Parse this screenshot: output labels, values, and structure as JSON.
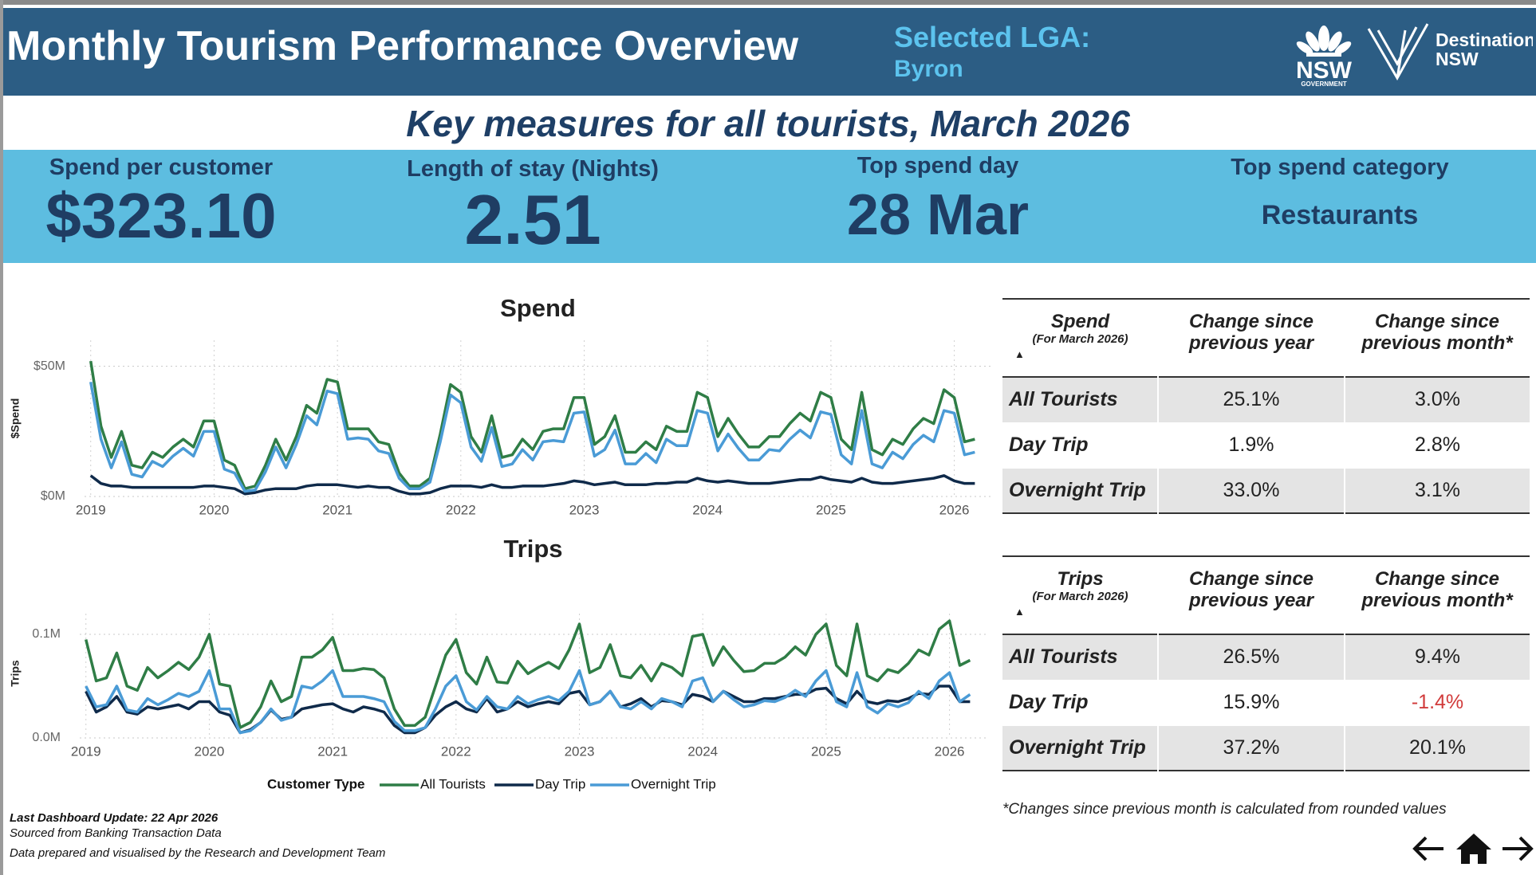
{
  "header": {
    "title": "Monthly Tourism Performance Overview",
    "lga_label": "Selected LGA:",
    "lga": "Byron",
    "logo_nsw": [
      "NSW",
      "GOVERNMENT"
    ],
    "logo_destination": [
      "Destination",
      "NSW"
    ]
  },
  "banner": "Key measures for all tourists, March 2026",
  "kpis": [
    {
      "label": "Spend per customer",
      "value": "$323.10"
    },
    {
      "label": "Length of stay (Nights)",
      "value": "2.51"
    },
    {
      "label": "Top spend day",
      "value": "28 Mar"
    },
    {
      "label": "Top spend category",
      "value": "Restaurants"
    }
  ],
  "chart_data": [
    {
      "type": "line",
      "title": "Spend",
      "y_label": "$Spend",
      "grid": true,
      "x": [
        2019,
        2019.0833,
        2019.1667,
        2019.25,
        2019.3333,
        2019.4167,
        2019.5,
        2019.5833,
        2019.6667,
        2019.75,
        2019.8333,
        2019.9167,
        2020,
        2020.0833,
        2020.1667,
        2020.25,
        2020.3333,
        2020.4167,
        2020.5,
        2020.5833,
        2020.6667,
        2020.75,
        2020.8333,
        2020.9167,
        2021,
        2021.0833,
        2021.1667,
        2021.25,
        2021.3333,
        2021.4167,
        2021.5,
        2021.5833,
        2021.6667,
        2021.75,
        2021.8333,
        2021.9167,
        2022,
        2022.0833,
        2022.1667,
        2022.25,
        2022.3333,
        2022.4167,
        2022.5,
        2022.5833,
        2022.6667,
        2022.75,
        2022.8333,
        2022.9167,
        2023,
        2023.0833,
        2023.1667,
        2023.25,
        2023.3333,
        2023.4167,
        2023.5,
        2023.5833,
        2023.6667,
        2023.75,
        2023.8333,
        2023.9167,
        2024,
        2024.0833,
        2024.1667,
        2024.25,
        2024.3333,
        2024.4167,
        2024.5,
        2024.5833,
        2024.6667,
        2024.75,
        2024.8333,
        2024.9167,
        2025,
        2025.0833,
        2025.1667,
        2025.25,
        2025.3333,
        2025.4167,
        2025.5,
        2025.5833,
        2025.6667,
        2025.75,
        2025.8333,
        2025.9167,
        2026,
        2026.0833,
        2026.1667
      ],
      "xlim": [
        2018.95,
        2026.3
      ],
      "xticks": [
        2019,
        2020,
        2021,
        2022,
        2023,
        2024,
        2025,
        2026
      ],
      "ylim": [
        0,
        60
      ],
      "yticks": [
        {
          "value": 0,
          "label": "$0M"
        },
        {
          "value": 50,
          "label": "$50M"
        }
      ],
      "series": [
        {
          "name": "All Tourists",
          "color": "#2f7d46",
          "values": [
            52,
            27,
            15,
            25,
            12,
            11,
            17,
            15,
            19,
            22,
            19,
            29,
            29,
            14,
            12,
            3,
            4,
            12,
            22,
            14,
            23,
            35,
            32,
            45,
            44,
            26,
            26,
            26,
            21,
            20,
            9,
            4,
            4,
            7,
            24,
            43,
            40,
            23,
            17,
            31,
            15,
            16,
            22,
            18,
            25,
            26,
            26,
            38,
            38,
            20,
            23,
            31,
            17,
            17,
            21,
            18,
            27,
            25,
            25,
            40,
            38,
            23,
            30,
            24,
            19,
            19,
            23,
            23,
            28,
            32,
            29,
            40,
            38,
            22,
            18,
            40,
            18,
            16,
            22,
            20,
            26,
            30,
            28,
            41,
            38,
            21,
            22
          ]
        },
        {
          "name": "Day Trip",
          "color": "#0f2a4a",
          "values": [
            8,
            5,
            4,
            4,
            3.5,
            3.5,
            3.5,
            3.5,
            3.5,
            3.5,
            3.5,
            4,
            4,
            3.5,
            3,
            1,
            1.5,
            2.5,
            3,
            3,
            3,
            4,
            4.5,
            4.5,
            4.5,
            4,
            3.5,
            4,
            3.5,
            3.5,
            2,
            1,
            1,
            1.5,
            3,
            4,
            4,
            4,
            3.5,
            4.5,
            3.5,
            3.5,
            4,
            4,
            4,
            4.5,
            5,
            6,
            5.5,
            4.5,
            5,
            5.5,
            4.5,
            4.5,
            4.5,
            5,
            5,
            5.5,
            5.5,
            7,
            6,
            5.5,
            6,
            5.5,
            5,
            5,
            5,
            5.5,
            6,
            6.5,
            6.5,
            7.5,
            6.5,
            6,
            5.5,
            7,
            5.5,
            5,
            5,
            5.5,
            6,
            6.5,
            7,
            8,
            6,
            5,
            5
          ]
        },
        {
          "name": "Overnight Trip",
          "color": "#4a9bd6",
          "values": [
            44,
            22,
            11,
            21,
            8.5,
            7.5,
            13.5,
            11.5,
            15.5,
            18.5,
            15.5,
            25,
            25,
            10.5,
            9,
            2,
            2.5,
            9.5,
            19,
            11,
            20,
            31,
            27.5,
            40.5,
            39.5,
            22,
            22.5,
            22,
            17.5,
            16.5,
            7,
            3,
            3,
            5.5,
            21,
            39,
            36,
            19,
            13.5,
            26.5,
            11.5,
            12.5,
            18,
            14,
            21,
            21.5,
            21,
            32,
            32.5,
            15.5,
            18,
            25.5,
            12.5,
            12.5,
            16.5,
            13,
            22,
            19.5,
            19.5,
            33,
            32,
            17.5,
            24,
            18.5,
            14,
            14,
            18,
            17.5,
            22,
            25.5,
            22.5,
            32.5,
            31.5,
            16,
            12.5,
            33,
            12.5,
            11,
            17,
            14.5,
            20,
            23.5,
            21,
            33,
            32,
            16,
            17
          ]
        }
      ]
    },
    {
      "type": "line",
      "title": "Trips",
      "y_label": "Trips",
      "grid": true,
      "legend_title": "Customer Type",
      "legend": "bottom",
      "x": [
        2019,
        2019.0833,
        2019.1667,
        2019.25,
        2019.3333,
        2019.4167,
        2019.5,
        2019.5833,
        2019.6667,
        2019.75,
        2019.8333,
        2019.9167,
        2020,
        2020.0833,
        2020.1667,
        2020.25,
        2020.3333,
        2020.4167,
        2020.5,
        2020.5833,
        2020.6667,
        2020.75,
        2020.8333,
        2020.9167,
        2021,
        2021.0833,
        2021.1667,
        2021.25,
        2021.3333,
        2021.4167,
        2021.5,
        2021.5833,
        2021.6667,
        2021.75,
        2021.8333,
        2021.9167,
        2022,
        2022.0833,
        2022.1667,
        2022.25,
        2022.3333,
        2022.4167,
        2022.5,
        2022.5833,
        2022.6667,
        2022.75,
        2022.8333,
        2022.9167,
        2023,
        2023.0833,
        2023.1667,
        2023.25,
        2023.3333,
        2023.4167,
        2023.5,
        2023.5833,
        2023.6667,
        2023.75,
        2023.8333,
        2023.9167,
        2024,
        2024.0833,
        2024.1667,
        2024.25,
        2024.3333,
        2024.4167,
        2024.5,
        2024.5833,
        2024.6667,
        2024.75,
        2024.8333,
        2024.9167,
        2025,
        2025.0833,
        2025.1667,
        2025.25,
        2025.3333,
        2025.4167,
        2025.5,
        2025.5833,
        2025.6667,
        2025.75,
        2025.8333,
        2025.9167,
        2026,
        2026.0833,
        2026.1667
      ],
      "xlim": [
        2018.95,
        2026.3
      ],
      "xticks": [
        2019,
        2020,
        2021,
        2022,
        2023,
        2024,
        2025,
        2026
      ],
      "ylim": [
        0,
        0.12
      ],
      "yticks": [
        {
          "value": 0,
          "label": "0.0M"
        },
        {
          "value": 0.1,
          "label": "0.1M"
        }
      ],
      "series": [
        {
          "name": "All Tourists",
          "color": "#2f7d46",
          "values": [
            0.095,
            0.055,
            0.058,
            0.082,
            0.05,
            0.046,
            0.068,
            0.058,
            0.065,
            0.073,
            0.066,
            0.078,
            0.1,
            0.052,
            0.05,
            0.01,
            0.015,
            0.03,
            0.055,
            0.035,
            0.04,
            0.078,
            0.078,
            0.085,
            0.097,
            0.065,
            0.065,
            0.067,
            0.066,
            0.058,
            0.028,
            0.012,
            0.012,
            0.02,
            0.05,
            0.08,
            0.095,
            0.063,
            0.052,
            0.078,
            0.054,
            0.053,
            0.074,
            0.062,
            0.068,
            0.073,
            0.067,
            0.085,
            0.11,
            0.063,
            0.068,
            0.09,
            0.06,
            0.058,
            0.07,
            0.055,
            0.072,
            0.068,
            0.06,
            0.098,
            0.1,
            0.07,
            0.088,
            0.075,
            0.064,
            0.065,
            0.072,
            0.072,
            0.078,
            0.088,
            0.08,
            0.1,
            0.11,
            0.07,
            0.06,
            0.11,
            0.06,
            0.055,
            0.066,
            0.063,
            0.072,
            0.085,
            0.08,
            0.105,
            0.113,
            0.07,
            0.075
          ]
        },
        {
          "name": "Day Trip",
          "color": "#0f2a4a",
          "values": [
            0.045,
            0.025,
            0.03,
            0.04,
            0.025,
            0.023,
            0.03,
            0.028,
            0.03,
            0.032,
            0.028,
            0.035,
            0.035,
            0.025,
            0.022,
            0.005,
            0.008,
            0.015,
            0.027,
            0.018,
            0.02,
            0.028,
            0.03,
            0.032,
            0.033,
            0.028,
            0.025,
            0.03,
            0.028,
            0.025,
            0.012,
            0.005,
            0.005,
            0.01,
            0.022,
            0.03,
            0.035,
            0.028,
            0.025,
            0.038,
            0.025,
            0.028,
            0.035,
            0.03,
            0.033,
            0.035,
            0.033,
            0.043,
            0.045,
            0.032,
            0.035,
            0.045,
            0.03,
            0.033,
            0.038,
            0.03,
            0.036,
            0.035,
            0.032,
            0.042,
            0.04,
            0.035,
            0.045,
            0.04,
            0.035,
            0.035,
            0.038,
            0.038,
            0.04,
            0.042,
            0.042,
            0.047,
            0.048,
            0.038,
            0.033,
            0.045,
            0.035,
            0.033,
            0.036,
            0.035,
            0.038,
            0.043,
            0.042,
            0.05,
            0.05,
            0.035,
            0.035
          ]
        },
        {
          "name": "Overnight Trip",
          "color": "#4a9bd6",
          "values": [
            0.05,
            0.03,
            0.032,
            0.05,
            0.027,
            0.025,
            0.038,
            0.032,
            0.037,
            0.043,
            0.04,
            0.045,
            0.065,
            0.028,
            0.028,
            0.005,
            0.007,
            0.015,
            0.028,
            0.017,
            0.02,
            0.05,
            0.048,
            0.055,
            0.065,
            0.04,
            0.04,
            0.04,
            0.038,
            0.035,
            0.016,
            0.007,
            0.007,
            0.01,
            0.028,
            0.05,
            0.06,
            0.035,
            0.027,
            0.04,
            0.03,
            0.028,
            0.04,
            0.033,
            0.037,
            0.04,
            0.036,
            0.045,
            0.065,
            0.032,
            0.035,
            0.045,
            0.03,
            0.028,
            0.035,
            0.028,
            0.038,
            0.035,
            0.03,
            0.055,
            0.058,
            0.035,
            0.045,
            0.037,
            0.03,
            0.032,
            0.036,
            0.035,
            0.039,
            0.046,
            0.04,
            0.055,
            0.065,
            0.035,
            0.03,
            0.063,
            0.03,
            0.024,
            0.033,
            0.03,
            0.034,
            0.045,
            0.038,
            0.055,
            0.063,
            0.035,
            0.042
          ]
        }
      ]
    }
  ],
  "tables": [
    {
      "title": "Spend",
      "subtitle": "(For March 2026)",
      "columns": [
        "Change since previous year",
        "Change since previous month*"
      ],
      "rows": [
        {
          "label": "All Tourists",
          "values": [
            "25.1%",
            "3.0%"
          ]
        },
        {
          "label": "Day Trip",
          "values": [
            "1.9%",
            "2.8%"
          ]
        },
        {
          "label": "Overnight Trip",
          "values": [
            "33.0%",
            "3.1%"
          ]
        }
      ]
    },
    {
      "title": "Trips",
      "subtitle": "(For March 2026)",
      "columns": [
        "Change since previous year",
        "Change since previous month*"
      ],
      "rows": [
        {
          "label": "All Tourists",
          "values": [
            "26.5%",
            "9.4%"
          ]
        },
        {
          "label": "Day Trip",
          "values": [
            "15.9%",
            "-1.4%"
          ]
        },
        {
          "label": "Overnight Trip",
          "values": [
            "37.2%",
            "20.1%"
          ]
        }
      ]
    }
  ],
  "footnote": "*Changes since previous month is calculated from rounded values",
  "footer": [
    "Last Dashboard Update: 22 Apr 2026",
    "Sourced from Banking Transaction Data",
    "Data prepared and visualised by the Research and Development Team"
  ]
}
